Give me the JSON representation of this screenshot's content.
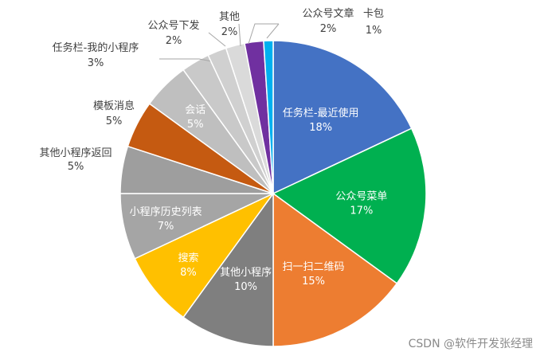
{
  "chart_data": {
    "type": "pie",
    "title": "",
    "start_angle_deg": 0,
    "direction": "clockwise",
    "slices": [
      {
        "label": "任务栏-最近使用",
        "value": 18,
        "pct": "18%",
        "color": "#4472c4",
        "label_pos": "inside"
      },
      {
        "label": "公众号菜单",
        "value": 17,
        "pct": "17%",
        "color": "#00b050",
        "label_pos": "inside"
      },
      {
        "label": "扫一扫二维码",
        "value": 15,
        "pct": "15%",
        "color": "#ed7d31",
        "label_pos": "inside"
      },
      {
        "label": "其他小程序",
        "value": 10,
        "pct": "10%",
        "color": "#7f7f7f",
        "label_pos": "inside"
      },
      {
        "label": "搜索",
        "value": 8,
        "pct": "8%",
        "color": "#ffc000",
        "label_pos": "inside"
      },
      {
        "label": "小程序历史列表",
        "value": 7,
        "pct": "7%",
        "color": "#a5a5a5",
        "label_pos": "inside"
      },
      {
        "label": "其他小程序返回",
        "value": 5,
        "pct": "5%",
        "color": "#9e9e9e",
        "label_pos": "outside"
      },
      {
        "label": "模板消息",
        "value": 5,
        "pct": "5%",
        "color": "#c55a11",
        "label_pos": "outside"
      },
      {
        "label": "会话",
        "value": 5,
        "pct": "5%",
        "color": "#bfbfbf",
        "label_pos": "inside"
      },
      {
        "label": "任务栏-我的小程序",
        "value": 3,
        "pct": "3%",
        "color": "#c9c9c9",
        "label_pos": "outside"
      },
      {
        "label": "公众号下发",
        "value": 2,
        "pct": "2%",
        "color": "#d0d0d0",
        "label_pos": "outside"
      },
      {
        "label": "其他",
        "value": 2,
        "pct": "2%",
        "color": "#dadada",
        "label_pos": "outside"
      },
      {
        "label": "公众号文章",
        "value": 2,
        "pct": "2%",
        "color": "#7030a0",
        "label_pos": "outside"
      },
      {
        "label": "卡包",
        "value": 1,
        "pct": "1%",
        "color": "#00b0f0",
        "label_pos": "outside"
      }
    ]
  },
  "watermark": "CSDN @软件开发张经理"
}
